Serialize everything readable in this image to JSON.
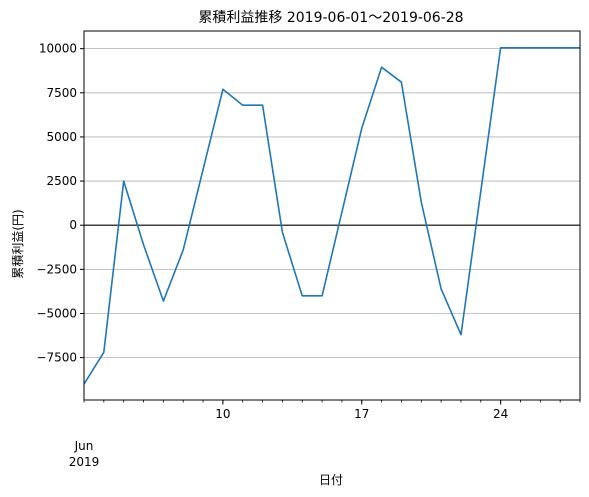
{
  "chart_data": {
    "type": "line",
    "title": "累積利益推移  2019-06-01〜2019-06-28",
    "xlabel": "日付",
    "ylabel": "累積利益(円)",
    "x_offset_label": [
      "Jun",
      "2019"
    ],
    "x_ticks": [
      "10",
      "17",
      "24"
    ],
    "x_tick_values": [
      "2019-06-10",
      "2019-06-17",
      "2019-06-24"
    ],
    "y_ticks": [
      -7500,
      -5000,
      -2500,
      0,
      2500,
      5000,
      7500,
      10000
    ],
    "y_tick_labels": [
      "−7500",
      "−5000",
      "−2500",
      "0",
      "2500",
      "5000",
      "7500",
      "10000"
    ],
    "xlim": [
      "2019-06-03",
      "2019-06-28"
    ],
    "ylim": [
      -9900,
      11000
    ],
    "grid": "horizontal",
    "zero_line": true,
    "series": [
      {
        "color": "#1f77b4",
        "x": [
          "2019-06-03",
          "2019-06-04",
          "2019-06-05",
          "2019-06-06",
          "2019-06-07",
          "2019-06-08",
          "2019-06-10",
          "2019-06-11",
          "2019-06-12",
          "2019-06-13",
          "2019-06-14",
          "2019-06-15",
          "2019-06-17",
          "2019-06-18",
          "2019-06-19",
          "2019-06-20",
          "2019-06-21",
          "2019-06-22",
          "2019-06-24",
          "2019-06-25",
          "2019-06-26",
          "2019-06-27",
          "2019-06-28"
        ],
        "values": [
          -9000,
          -7200,
          2500,
          -1100,
          -4300,
          -1400,
          7700,
          6800,
          6800,
          -400,
          -4000,
          -4000,
          5500,
          8950,
          8100,
          1300,
          -3600,
          -6200,
          10050,
          10050,
          10050,
          10050,
          10050
        ]
      }
    ]
  }
}
